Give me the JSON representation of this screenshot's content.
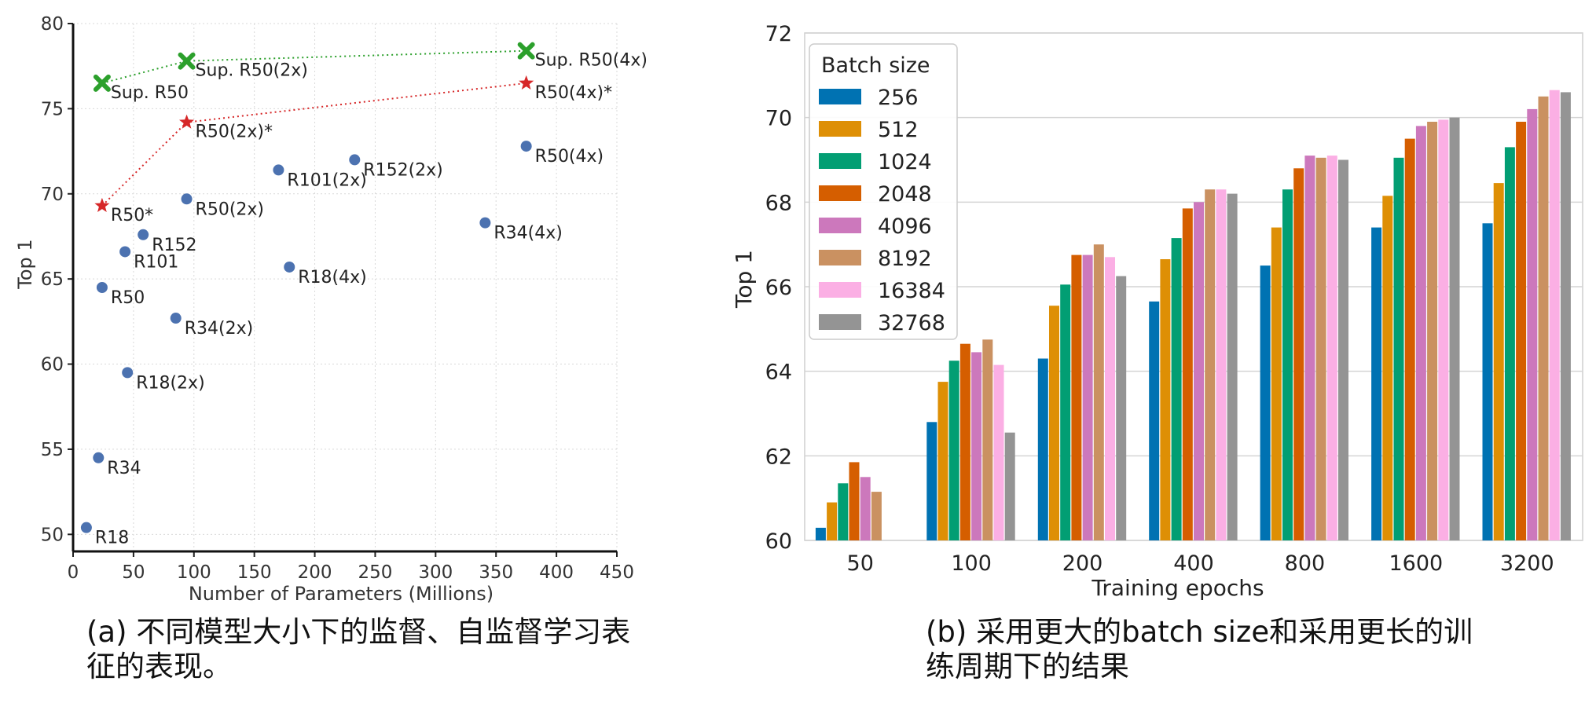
{
  "captions": {
    "left": "(a) 不同模型大小下的监督、自监督学习表征的表现。",
    "right": "(b) 采用更大的batch size和采用更长的训练周期下的结果"
  },
  "chart_data": [
    {
      "type": "scatter",
      "xlabel": "Number of Parameters (Millions)",
      "ylabel": "Top 1",
      "xlim": [
        0,
        450
      ],
      "ylim": [
        49,
        80
      ],
      "xticks": [
        "0",
        "50",
        "100",
        "150",
        "200",
        "250",
        "300",
        "350",
        "400",
        "450"
      ],
      "yticks": [
        "50",
        "55",
        "60",
        "65",
        "70",
        "75",
        "80"
      ],
      "grid": true,
      "colors": {
        "points": "#4c72b0",
        "red": "#d62728",
        "green": "#2ca02c"
      },
      "points": [
        {
          "label": "R18",
          "x": 11,
          "y": 50.4
        },
        {
          "label": "R34",
          "x": 21,
          "y": 54.5
        },
        {
          "label": "R18(2x)",
          "x": 45,
          "y": 59.5
        },
        {
          "label": "R34(2x)",
          "x": 85,
          "y": 62.7
        },
        {
          "label": "R50",
          "x": 24,
          "y": 64.5
        },
        {
          "label": "R101",
          "x": 43,
          "y": 66.6
        },
        {
          "label": "R152",
          "x": 58,
          "y": 67.6
        },
        {
          "label": "R50(2x)",
          "x": 94,
          "y": 69.7
        },
        {
          "label": "R101(2x)",
          "x": 170,
          "y": 71.4
        },
        {
          "label": "R152(2x)",
          "x": 233,
          "y": 72.0
        },
        {
          "label": "R18(4x)",
          "x": 179,
          "y": 65.7
        },
        {
          "label": "R34(4x)",
          "x": 341,
          "y": 68.3
        },
        {
          "label": "R50(4x)",
          "x": 375,
          "y": 72.8
        }
      ],
      "series": [
        {
          "marker": "star",
          "color": "#d62728",
          "points": [
            {
              "label": "R50*",
              "x": 24,
              "y": 69.3
            },
            {
              "label": "R50(2x)*",
              "x": 94,
              "y": 74.2
            },
            {
              "label": "R50(4x)*",
              "x": 375,
              "y": 76.5
            }
          ]
        },
        {
          "marker": "x",
          "color": "#2ca02c",
          "points": [
            {
              "label": "Sup. R50",
              "x": 24,
              "y": 76.5
            },
            {
              "label": "Sup. R50(2x)",
              "x": 94,
              "y": 77.8
            },
            {
              "label": "Sup. R50(4x)",
              "x": 375,
              "y": 78.4
            }
          ]
        }
      ]
    },
    {
      "type": "bar",
      "xlabel": "Training epochs",
      "ylabel": "Top 1",
      "ylim": [
        60,
        72
      ],
      "yticks": [
        "60",
        "62",
        "64",
        "66",
        "68",
        "70",
        "72"
      ],
      "grid": true,
      "legend_title": "Batch size",
      "legend_position": "top-left",
      "categories": [
        "50",
        "100",
        "200",
        "400",
        "800",
        "1600",
        "3200"
      ],
      "series": [
        {
          "name": "256",
          "color": "#0072b2",
          "values": [
            60.3,
            62.8,
            64.3,
            65.65,
            66.5,
            67.4,
            67.5
          ]
        },
        {
          "name": "512",
          "color": "#de8f05",
          "values": [
            60.9,
            63.75,
            65.55,
            66.65,
            67.4,
            68.15,
            68.45
          ]
        },
        {
          "name": "1024",
          "color": "#029e73",
          "values": [
            61.35,
            64.25,
            66.05,
            67.15,
            68.3,
            69.05,
            69.3
          ]
        },
        {
          "name": "2048",
          "color": "#d55e00",
          "values": [
            61.85,
            64.65,
            66.75,
            67.85,
            68.8,
            69.5,
            69.9
          ]
        },
        {
          "name": "4096",
          "color": "#cc78bc",
          "values": [
            61.5,
            64.45,
            66.75,
            68.0,
            69.1,
            69.8,
            70.2
          ]
        },
        {
          "name": "8192",
          "color": "#ca9161",
          "values": [
            61.15,
            64.75,
            67.0,
            68.3,
            69.05,
            69.9,
            70.5
          ]
        },
        {
          "name": "16384",
          "color": "#fbafe4",
          "values": [
            null,
            64.15,
            66.7,
            68.3,
            69.1,
            69.95,
            70.65
          ]
        },
        {
          "name": "32768",
          "color": "#949494",
          "values": [
            null,
            62.55,
            66.25,
            68.2,
            69.0,
            70.0,
            70.6
          ]
        }
      ]
    }
  ]
}
